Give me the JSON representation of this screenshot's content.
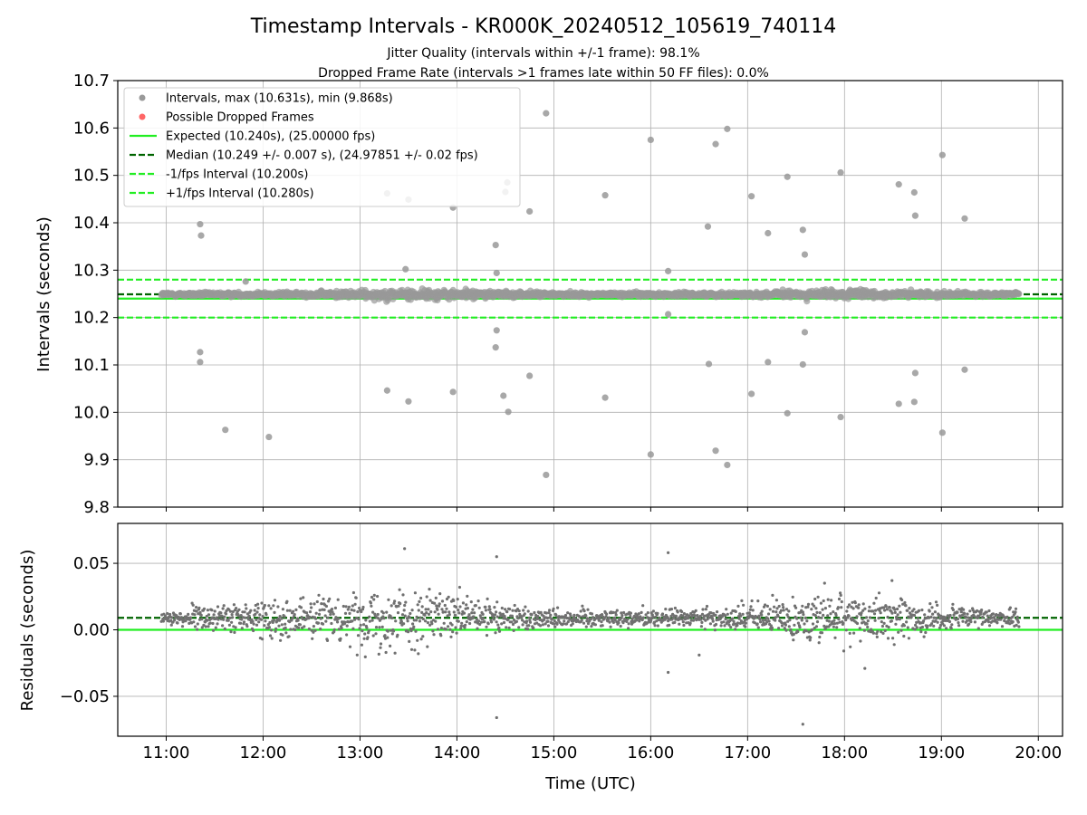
{
  "chart_data": [
    {
      "type": "scatter",
      "title": "Timestamp Intervals - KR000K_20240512_105619_740114",
      "subtitle_lines": [
        "Jitter Quality (intervals within +/-1 frame): 98.1%",
        "Dropped Frame Rate (intervals >1 frames late within 50 FF files): 0.0%"
      ],
      "ylabel": "Intervals (seconds)",
      "ylim": [
        9.8,
        10.7
      ],
      "yticks": [
        9.8,
        9.9,
        10.0,
        10.1,
        10.2,
        10.3,
        10.4,
        10.5,
        10.6,
        10.7
      ],
      "ytick_labels": [
        "9.8",
        "9.9",
        "10.0",
        "10.1",
        "10.2",
        "10.3",
        "10.4",
        "10.5",
        "10.6",
        "10.7"
      ],
      "grid": true,
      "legend_placement": "top-left",
      "legend": [
        {
          "label": "Intervals, max (10.631s), min (9.868s)",
          "kind": "marker",
          "color": "#999999"
        },
        {
          "label": "Possible Dropped Frames",
          "kind": "marker",
          "color": "#ff6666"
        },
        {
          "label": "Expected (10.240s), (25.00000 fps)",
          "kind": "solid",
          "color": "#22ee22"
        },
        {
          "label": "Median (10.249 +/- 0.007 s), (24.97851 +/- 0.02 fps)",
          "kind": "dashed",
          "color": "#006400"
        },
        {
          "label": "-1/fps Interval (10.200s)",
          "kind": "dashed",
          "color": "#22ee22"
        },
        {
          "label": "+1/fps Interval (10.280s)",
          "kind": "dashed",
          "color": "#22ee22"
        }
      ],
      "hlines": [
        {
          "name": "expected",
          "y": 10.24,
          "style": "solid",
          "color": "#22ee22"
        },
        {
          "name": "median",
          "y": 10.249,
          "style": "dashed",
          "color": "#006400"
        },
        {
          "name": "minus-one-fps",
          "y": 10.2,
          "style": "dashed",
          "color": "#22ee22"
        },
        {
          "name": "plus-one-fps",
          "y": 10.28,
          "style": "dashed",
          "color": "#22ee22"
        }
      ],
      "series": [
        {
          "name": "Intervals",
          "color": "#999999",
          "band": {
            "t_start": 10.95,
            "t_end": 19.8,
            "center": 10.249,
            "spread": 0.01
          },
          "outliers": [
            {
              "x": 11.35,
              "y": 10.397
            },
            {
              "x": 11.36,
              "y": 10.373
            },
            {
              "x": 11.35,
              "y": 10.127
            },
            {
              "x": 11.35,
              "y": 10.106
            },
            {
              "x": 11.61,
              "y": 9.963
            },
            {
              "x": 12.06,
              "y": 9.948
            },
            {
              "x": 11.82,
              "y": 10.276
            },
            {
              "x": 13.28,
              "y": 10.462
            },
            {
              "x": 13.28,
              "y": 10.046
            },
            {
              "x": 13.5,
              "y": 10.449
            },
            {
              "x": 13.5,
              "y": 10.023
            },
            {
              "x": 13.47,
              "y": 10.302
            },
            {
              "x": 13.96,
              "y": 10.432
            },
            {
              "x": 13.96,
              "y": 10.043
            },
            {
              "x": 14.4,
              "y": 10.353
            },
            {
              "x": 14.41,
              "y": 10.294
            },
            {
              "x": 14.41,
              "y": 10.173
            },
            {
              "x": 14.4,
              "y": 10.137
            },
            {
              "x": 14.5,
              "y": 10.465
            },
            {
              "x": 14.52,
              "y": 10.485
            },
            {
              "x": 14.48,
              "y": 10.035
            },
            {
              "x": 14.53,
              "y": 10.001
            },
            {
              "x": 14.75,
              "y": 10.424
            },
            {
              "x": 14.75,
              "y": 10.077
            },
            {
              "x": 14.92,
              "y": 10.631
            },
            {
              "x": 14.92,
              "y": 9.868
            },
            {
              "x": 15.53,
              "y": 10.458
            },
            {
              "x": 15.53,
              "y": 10.031
            },
            {
              "x": 16.0,
              "y": 10.575
            },
            {
              "x": 16.0,
              "y": 9.911
            },
            {
              "x": 16.18,
              "y": 10.298
            },
            {
              "x": 16.18,
              "y": 10.207
            },
            {
              "x": 16.59,
              "y": 10.392
            },
            {
              "x": 16.6,
              "y": 10.102
            },
            {
              "x": 16.67,
              "y": 10.566
            },
            {
              "x": 16.67,
              "y": 9.919
            },
            {
              "x": 16.79,
              "y": 10.598
            },
            {
              "x": 16.79,
              "y": 9.889
            },
            {
              "x": 17.04,
              "y": 10.456
            },
            {
              "x": 17.04,
              "y": 10.039
            },
            {
              "x": 17.21,
              "y": 10.378
            },
            {
              "x": 17.21,
              "y": 10.106
            },
            {
              "x": 17.41,
              "y": 10.497
            },
            {
              "x": 17.41,
              "y": 9.998
            },
            {
              "x": 17.57,
              "y": 10.385
            },
            {
              "x": 17.59,
              "y": 10.333
            },
            {
              "x": 17.59,
              "y": 10.169
            },
            {
              "x": 17.57,
              "y": 10.101
            },
            {
              "x": 17.96,
              "y": 10.506
            },
            {
              "x": 17.96,
              "y": 9.99
            },
            {
              "x": 18.56,
              "y": 10.481
            },
            {
              "x": 18.56,
              "y": 10.018
            },
            {
              "x": 18.72,
              "y": 10.464
            },
            {
              "x": 18.73,
              "y": 10.415
            },
            {
              "x": 18.73,
              "y": 10.083
            },
            {
              "x": 18.72,
              "y": 10.022
            },
            {
              "x": 19.01,
              "y": 10.543
            },
            {
              "x": 19.01,
              "y": 9.957
            },
            {
              "x": 19.24,
              "y": 10.409
            },
            {
              "x": 19.24,
              "y": 10.09
            }
          ]
        }
      ]
    },
    {
      "type": "scatter",
      "ylabel": "Residuals (seconds)",
      "ylim": [
        -0.08,
        0.08
      ],
      "yticks": [
        -0.05,
        0.0,
        0.05
      ],
      "ytick_labels": [
        "−0.05",
        "0.00",
        "0.05"
      ],
      "xlabel": "Time (UTC)",
      "xlim": [
        10.5,
        20.25
      ],
      "xticks": [
        11,
        12,
        13,
        14,
        15,
        16,
        17,
        18,
        19,
        20
      ],
      "xtick_labels": [
        "11:00",
        "12:00",
        "13:00",
        "14:00",
        "15:00",
        "16:00",
        "17:00",
        "18:00",
        "19:00",
        "20:00"
      ],
      "grid": true,
      "hlines": [
        {
          "name": "expected-zero",
          "y": 0.0,
          "style": "solid",
          "color": "#22ee22"
        },
        {
          "name": "median-offset",
          "y": 0.009,
          "style": "dashed",
          "color": "#006400"
        }
      ],
      "series": [
        {
          "name": "Residuals",
          "color": "#707070",
          "band": {
            "t_start": 10.95,
            "t_end": 19.8,
            "center": 0.009,
            "spread": 0.006
          },
          "outliers": [
            {
              "x": 13.46,
              "y": 0.061
            },
            {
              "x": 14.41,
              "y": 0.055
            },
            {
              "x": 16.18,
              "y": 0.058
            },
            {
              "x": 14.41,
              "y": -0.066
            },
            {
              "x": 17.57,
              "y": -0.071
            },
            {
              "x": 16.18,
              "y": -0.032
            },
            {
              "x": 18.21,
              "y": -0.029
            },
            {
              "x": 16.5,
              "y": -0.019
            },
            {
              "x": 18.49,
              "y": 0.037
            }
          ]
        }
      ]
    }
  ]
}
